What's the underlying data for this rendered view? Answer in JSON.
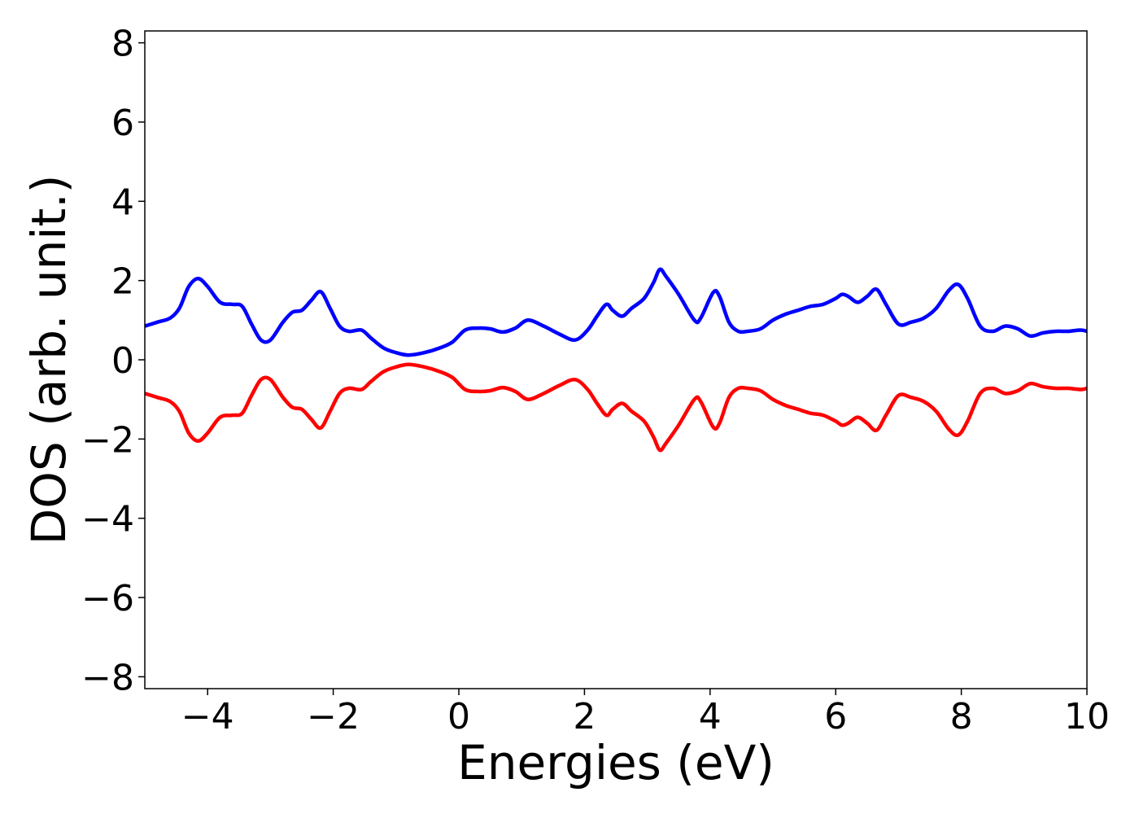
{
  "chart_data": {
    "type": "line",
    "xlabel": "Energies (eV)",
    "ylabel": "DOS (arb. unit.)",
    "xlim": [
      -5,
      10
    ],
    "ylim": [
      -8.3,
      8.3
    ],
    "xticks": [
      -4,
      -2,
      0,
      2,
      4,
      6,
      8,
      10
    ],
    "xtick_labels": [
      "−4",
      "−2",
      "0",
      "2",
      "4",
      "6",
      "8",
      "10"
    ],
    "yticks": [
      -8,
      -6,
      -4,
      -2,
      0,
      2,
      4,
      6,
      8
    ],
    "ytick_labels": [
      "−8",
      "−6",
      "−4",
      "−2",
      "0",
      "2",
      "4",
      "6",
      "8"
    ],
    "grid": false,
    "series": [
      {
        "color": "#0000ff",
        "x": [
          -5.0,
          -4.8,
          -4.6,
          -4.45,
          -4.3,
          -4.15,
          -4.0,
          -3.8,
          -3.6,
          -3.45,
          -3.3,
          -3.15,
          -3.0,
          -2.8,
          -2.65,
          -2.5,
          -2.35,
          -2.2,
          -2.05,
          -1.9,
          -1.75,
          -1.55,
          -1.4,
          -1.2,
          -1.0,
          -0.8,
          -0.55,
          -0.3,
          -0.1,
          0.1,
          0.3,
          0.5,
          0.7,
          0.9,
          1.1,
          1.35,
          1.6,
          1.85,
          2.05,
          2.2,
          2.35,
          2.45,
          2.6,
          2.75,
          2.95,
          3.1,
          3.2,
          3.3,
          3.5,
          3.75,
          3.85,
          4.05,
          4.15,
          4.3,
          4.45,
          4.6,
          4.8,
          5.0,
          5.2,
          5.4,
          5.6,
          5.8,
          6.0,
          6.1,
          6.2,
          6.35,
          6.5,
          6.65,
          6.8,
          7.0,
          7.2,
          7.4,
          7.6,
          7.8,
          7.95,
          8.1,
          8.3,
          8.5,
          8.7,
          8.9,
          9.1,
          9.3,
          9.5,
          9.7,
          9.9,
          10.0
        ],
        "y": [
          0.85,
          0.95,
          1.05,
          1.3,
          1.85,
          2.05,
          1.85,
          1.45,
          1.4,
          1.35,
          0.9,
          0.5,
          0.5,
          0.95,
          1.2,
          1.25,
          1.5,
          1.72,
          1.3,
          0.85,
          0.72,
          0.75,
          0.55,
          0.3,
          0.18,
          0.12,
          0.18,
          0.3,
          0.45,
          0.75,
          0.8,
          0.78,
          0.7,
          0.8,
          1.0,
          0.85,
          0.65,
          0.5,
          0.75,
          1.1,
          1.4,
          1.25,
          1.1,
          1.3,
          1.55,
          1.95,
          2.28,
          2.1,
          1.65,
          1.0,
          1.05,
          1.7,
          1.6,
          0.95,
          0.72,
          0.72,
          0.78,
          1.0,
          1.15,
          1.25,
          1.35,
          1.4,
          1.55,
          1.65,
          1.6,
          1.45,
          1.6,
          1.78,
          1.4,
          0.9,
          0.95,
          1.05,
          1.3,
          1.75,
          1.9,
          1.55,
          0.85,
          0.72,
          0.85,
          0.78,
          0.6,
          0.68,
          0.72,
          0.72,
          0.75,
          0.72
        ]
      },
      {
        "color": "#ff0000",
        "x": [
          -5.0,
          -4.8,
          -4.6,
          -4.45,
          -4.3,
          -4.15,
          -4.0,
          -3.8,
          -3.6,
          -3.45,
          -3.3,
          -3.15,
          -3.0,
          -2.8,
          -2.65,
          -2.5,
          -2.35,
          -2.2,
          -2.05,
          -1.9,
          -1.75,
          -1.55,
          -1.4,
          -1.2,
          -1.0,
          -0.8,
          -0.55,
          -0.3,
          -0.1,
          0.1,
          0.3,
          0.5,
          0.7,
          0.9,
          1.1,
          1.35,
          1.6,
          1.85,
          2.05,
          2.2,
          2.35,
          2.45,
          2.6,
          2.75,
          2.95,
          3.1,
          3.2,
          3.3,
          3.5,
          3.75,
          3.85,
          4.05,
          4.15,
          4.3,
          4.45,
          4.6,
          4.8,
          5.0,
          5.2,
          5.4,
          5.6,
          5.8,
          6.0,
          6.1,
          6.2,
          6.35,
          6.5,
          6.65,
          6.8,
          7.0,
          7.2,
          7.4,
          7.6,
          7.8,
          7.95,
          8.1,
          8.3,
          8.5,
          8.7,
          8.9,
          9.1,
          9.3,
          9.5,
          9.7,
          9.9,
          10.0
        ],
        "y": [
          -0.85,
          -0.95,
          -1.05,
          -1.3,
          -1.85,
          -2.05,
          -1.85,
          -1.45,
          -1.4,
          -1.35,
          -0.9,
          -0.5,
          -0.5,
          -0.95,
          -1.2,
          -1.25,
          -1.5,
          -1.72,
          -1.3,
          -0.85,
          -0.72,
          -0.75,
          -0.55,
          -0.3,
          -0.18,
          -0.12,
          -0.18,
          -0.3,
          -0.45,
          -0.75,
          -0.8,
          -0.78,
          -0.7,
          -0.8,
          -1.0,
          -0.85,
          -0.65,
          -0.5,
          -0.75,
          -1.1,
          -1.4,
          -1.25,
          -1.1,
          -1.3,
          -1.55,
          -1.95,
          -2.28,
          -2.1,
          -1.65,
          -1.0,
          -1.05,
          -1.7,
          -1.6,
          -0.95,
          -0.72,
          -0.72,
          -0.78,
          -1.0,
          -1.15,
          -1.25,
          -1.35,
          -1.4,
          -1.55,
          -1.65,
          -1.6,
          -1.45,
          -1.6,
          -1.78,
          -1.4,
          -0.9,
          -0.95,
          -1.05,
          -1.3,
          -1.75,
          -1.9,
          -1.55,
          -0.85,
          -0.72,
          -0.85,
          -0.78,
          -0.6,
          -0.68,
          -0.72,
          -0.72,
          -0.75,
          -0.72
        ]
      }
    ]
  }
}
